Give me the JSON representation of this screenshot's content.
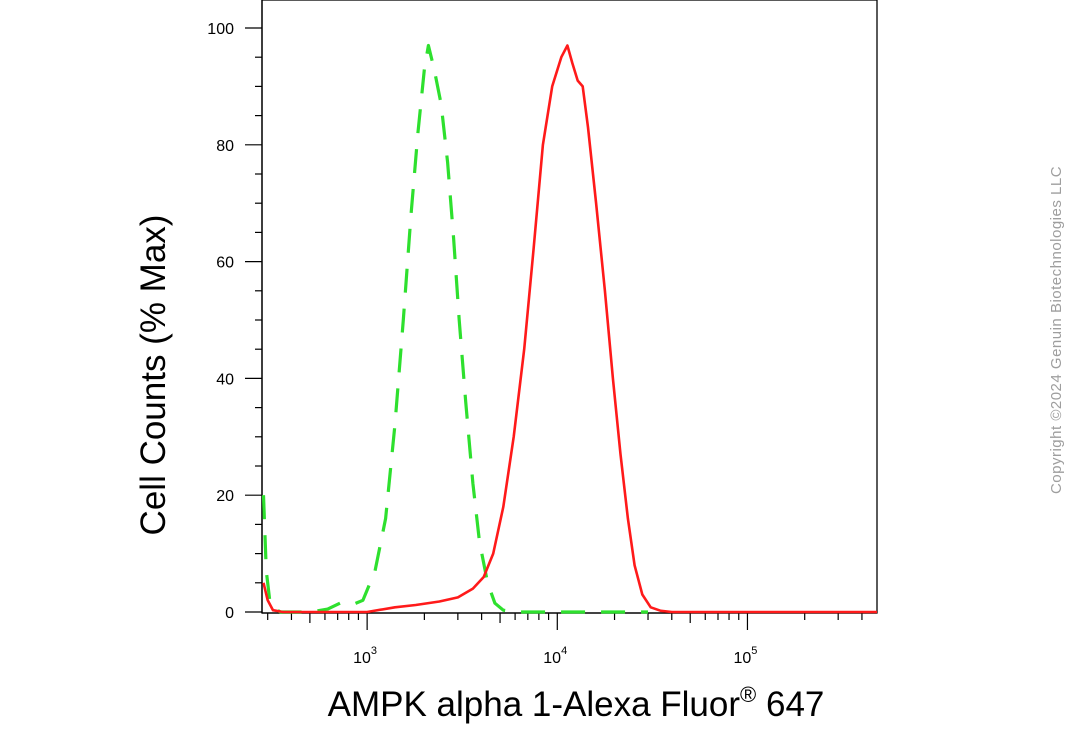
{
  "chart_data": {
    "type": "line",
    "title": "",
    "xlabel": "AMPK alpha 1-Alexa Fluor",
    "xlabel_sup": "®",
    "xlabel_suffix": " 647",
    "ylabel": "Cell Counts (% Max)",
    "x_scale": "log",
    "xlim": [
      280,
      480000
    ],
    "ylim": [
      0,
      100
    ],
    "x_ticks": [
      {
        "base": "10",
        "exp": "3",
        "value": 1000
      },
      {
        "base": "10",
        "exp": "4",
        "value": 10000
      },
      {
        "base": "10",
        "exp": "5",
        "value": 100000
      }
    ],
    "y_ticks": [
      "0",
      "20",
      "40",
      "60",
      "80",
      "100"
    ],
    "grid": false,
    "series": [
      {
        "color": "#2ee02e",
        "dash": "dashed",
        "points": [
          [
            285,
            20
          ],
          [
            295,
            7
          ],
          [
            310,
            1
          ],
          [
            350,
            0
          ],
          [
            500,
            0
          ],
          [
            620,
            0.5
          ],
          [
            720,
            1.5
          ],
          [
            830,
            1.2
          ],
          [
            950,
            2
          ],
          [
            1100,
            7
          ],
          [
            1250,
            16
          ],
          [
            1400,
            32
          ],
          [
            1550,
            50
          ],
          [
            1700,
            68
          ],
          [
            1850,
            82
          ],
          [
            2000,
            93
          ],
          [
            2100,
            97
          ],
          [
            2250,
            93
          ],
          [
            2450,
            87
          ],
          [
            2650,
            77
          ],
          [
            2850,
            64
          ],
          [
            3050,
            50
          ],
          [
            3300,
            36
          ],
          [
            3600,
            22
          ],
          [
            3900,
            12
          ],
          [
            4300,
            5
          ],
          [
            4700,
            1.5
          ],
          [
            5200,
            0.3
          ],
          [
            6000,
            0
          ],
          [
            9000,
            0
          ],
          [
            12000,
            0
          ],
          [
            20000,
            0
          ],
          [
            30000,
            0
          ]
        ]
      },
      {
        "color": "#ff1a1a",
        "dash": "solid",
        "points": [
          [
            285,
            5
          ],
          [
            300,
            2
          ],
          [
            320,
            0.3
          ],
          [
            360,
            0
          ],
          [
            600,
            0
          ],
          [
            1000,
            0
          ],
          [
            1400,
            0.8
          ],
          [
            1800,
            1.2
          ],
          [
            2400,
            1.8
          ],
          [
            3000,
            2.5
          ],
          [
            3600,
            4
          ],
          [
            4100,
            6
          ],
          [
            4600,
            10
          ],
          [
            5200,
            18
          ],
          [
            5900,
            30
          ],
          [
            6700,
            45
          ],
          [
            7500,
            62
          ],
          [
            8400,
            80
          ],
          [
            9400,
            90
          ],
          [
            10500,
            95
          ],
          [
            11300,
            97
          ],
          [
            12000,
            94
          ],
          [
            12800,
            91
          ],
          [
            13600,
            90
          ],
          [
            14500,
            83
          ],
          [
            16000,
            70
          ],
          [
            17800,
            55
          ],
          [
            19600,
            40
          ],
          [
            21500,
            27
          ],
          [
            23500,
            16
          ],
          [
            25500,
            8
          ],
          [
            28000,
            3
          ],
          [
            31000,
            0.8
          ],
          [
            35000,
            0.2
          ],
          [
            40000,
            0
          ],
          [
            100000,
            0
          ],
          [
            480000,
            0
          ]
        ]
      }
    ]
  },
  "watermark": "Copyright ©2024 Genuin Biotechnologies LLC"
}
